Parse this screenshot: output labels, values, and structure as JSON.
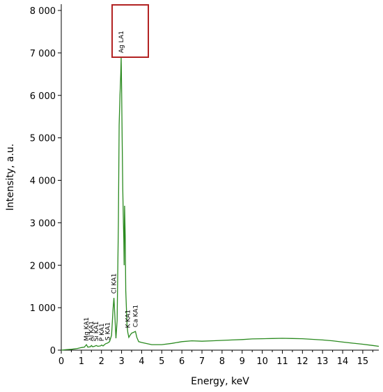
{
  "chart_data": {
    "type": "line",
    "xlabel": "Energy, keV",
    "ylabel": "Intensity, a.u.",
    "xlim": [
      0,
      15.8
    ],
    "ylim": [
      0,
      8000
    ],
    "grid": false,
    "series_color": "#2a8a1f",
    "highlight_color": "#b22222",
    "x_ticks": [
      0,
      1,
      2,
      3,
      4,
      5,
      6,
      7,
      8,
      9,
      10,
      11,
      12,
      13,
      14,
      15
    ],
    "x_tick_labels": [
      "0",
      "1",
      "2",
      "3",
      "4",
      "5",
      "6",
      "7",
      "8",
      "9",
      "10",
      "11",
      "12",
      "13",
      "14",
      "15"
    ],
    "y_ticks": [
      0,
      1000,
      2000,
      3000,
      4000,
      5000,
      6000,
      7000,
      8000
    ],
    "y_tick_labels": [
      "0",
      "1 000",
      "2 000",
      "3 000",
      "4 000",
      "5 000",
      "6 000",
      "7 000",
      "8 000"
    ],
    "highlighted_peak": "Ag LA1",
    "peak_labels": [
      {
        "text": "Mg KA1",
        "x": 1.25,
        "y": 120
      },
      {
        "text": "Al KA1",
        "x": 1.49,
        "y": 110
      },
      {
        "text": "Si KA1",
        "x": 1.74,
        "y": 110
      },
      {
        "text": "P KA1",
        "x": 2.01,
        "y": 110
      },
      {
        "text": "S KA1",
        "x": 2.31,
        "y": 130
      },
      {
        "text": "Cl KA1",
        "x": 2.62,
        "y": 1230
      },
      {
        "text": "Ag LA1",
        "x": 2.98,
        "y": 6900
      },
      {
        "text": "K KA1",
        "x": 3.31,
        "y": 420
      },
      {
        "text": "Ca KA1",
        "x": 3.69,
        "y": 440
      }
    ],
    "series": [
      {
        "points": [
          [
            0.0,
            0
          ],
          [
            0.2,
            10
          ],
          [
            0.5,
            20
          ],
          [
            0.8,
            40
          ],
          [
            1.0,
            60
          ],
          [
            1.15,
            70
          ],
          [
            1.25,
            130
          ],
          [
            1.32,
            70
          ],
          [
            1.45,
            80
          ],
          [
            1.5,
            110
          ],
          [
            1.56,
            80
          ],
          [
            1.65,
            90
          ],
          [
            1.74,
            110
          ],
          [
            1.82,
            90
          ],
          [
            1.95,
            100
          ],
          [
            2.01,
            120
          ],
          [
            2.08,
            100
          ],
          [
            2.2,
            150
          ],
          [
            2.31,
            170
          ],
          [
            2.4,
            200
          ],
          [
            2.5,
            350
          ],
          [
            2.58,
            1000
          ],
          [
            2.62,
            1230
          ],
          [
            2.66,
            850
          ],
          [
            2.72,
            280
          ],
          [
            2.78,
            700
          ],
          [
            2.84,
            3000
          ],
          [
            2.88,
            5300
          ],
          [
            2.92,
            6000
          ],
          [
            2.96,
            6500
          ],
          [
            2.98,
            6900
          ],
          [
            3.0,
            6200
          ],
          [
            3.03,
            5000
          ],
          [
            3.06,
            3800
          ],
          [
            3.09,
            3000
          ],
          [
            3.11,
            2600
          ],
          [
            3.13,
            2000
          ],
          [
            3.15,
            3400
          ],
          [
            3.18,
            2700
          ],
          [
            3.21,
            1400
          ],
          [
            3.24,
            1000
          ],
          [
            3.27,
            600
          ],
          [
            3.31,
            420
          ],
          [
            3.36,
            300
          ],
          [
            3.42,
            350
          ],
          [
            3.5,
            400
          ],
          [
            3.6,
            420
          ],
          [
            3.69,
            440
          ],
          [
            3.76,
            300
          ],
          [
            3.85,
            200
          ],
          [
            4.0,
            180
          ],
          [
            4.5,
            130
          ],
          [
            5.0,
            130
          ],
          [
            5.5,
            160
          ],
          [
            6.0,
            200
          ],
          [
            6.5,
            220
          ],
          [
            7.0,
            210
          ],
          [
            7.5,
            220
          ],
          [
            8.0,
            230
          ],
          [
            8.5,
            240
          ],
          [
            9.0,
            250
          ],
          [
            9.5,
            265
          ],
          [
            10.0,
            270
          ],
          [
            10.5,
            275
          ],
          [
            11.0,
            280
          ],
          [
            11.5,
            275
          ],
          [
            12.0,
            270
          ],
          [
            12.5,
            255
          ],
          [
            13.0,
            240
          ],
          [
            13.5,
            220
          ],
          [
            14.0,
            190
          ],
          [
            14.5,
            165
          ],
          [
            15.0,
            140
          ],
          [
            15.5,
            110
          ],
          [
            15.8,
            90
          ]
        ]
      }
    ]
  }
}
